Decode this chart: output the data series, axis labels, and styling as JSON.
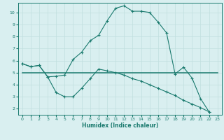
{
  "xlabel": "Humidex (Indice chaleur)",
  "x": [
    0,
    1,
    2,
    3,
    4,
    5,
    6,
    7,
    8,
    9,
    10,
    11,
    12,
    13,
    14,
    15,
    16,
    17,
    18,
    19,
    20,
    21,
    22,
    23
  ],
  "line1": [
    5.75,
    5.5,
    5.6,
    4.65,
    4.7,
    4.8,
    6.1,
    6.7,
    7.65,
    8.1,
    9.3,
    10.35,
    10.55,
    10.1,
    10.1,
    10.0,
    9.2,
    8.3,
    4.9,
    5.45,
    4.55,
    2.85,
    1.75,
    null
  ],
  "line2": [
    5.0,
    5.0,
    5.0,
    5.0,
    5.0,
    5.0,
    5.0,
    5.0,
    5.0,
    5.0,
    5.0,
    5.0,
    5.0,
    5.0,
    5.0,
    5.0,
    5.0,
    5.0,
    5.0,
    5.0,
    5.0,
    5.0,
    5.0,
    5.0
  ],
  "line3": [
    5.75,
    5.5,
    5.6,
    4.65,
    3.35,
    3.0,
    3.0,
    3.7,
    4.5,
    5.3,
    5.15,
    5.0,
    4.8,
    4.5,
    4.3,
    4.0,
    3.7,
    3.4,
    3.1,
    2.7,
    2.4,
    2.1,
    1.75,
    null
  ],
  "line_color": "#1a7a6e",
  "bg_color": "#d9eff0",
  "grid_color": "#c0dede",
  "ylim": [
    1.5,
    10.8
  ],
  "xlim": [
    -0.5,
    23.5
  ],
  "yticks": [
    2,
    3,
    4,
    5,
    6,
    7,
    8,
    9,
    10
  ],
  "xticks": [
    0,
    1,
    2,
    3,
    4,
    5,
    6,
    7,
    8,
    9,
    10,
    11,
    12,
    13,
    14,
    15,
    16,
    17,
    18,
    19,
    20,
    21,
    22,
    23
  ]
}
